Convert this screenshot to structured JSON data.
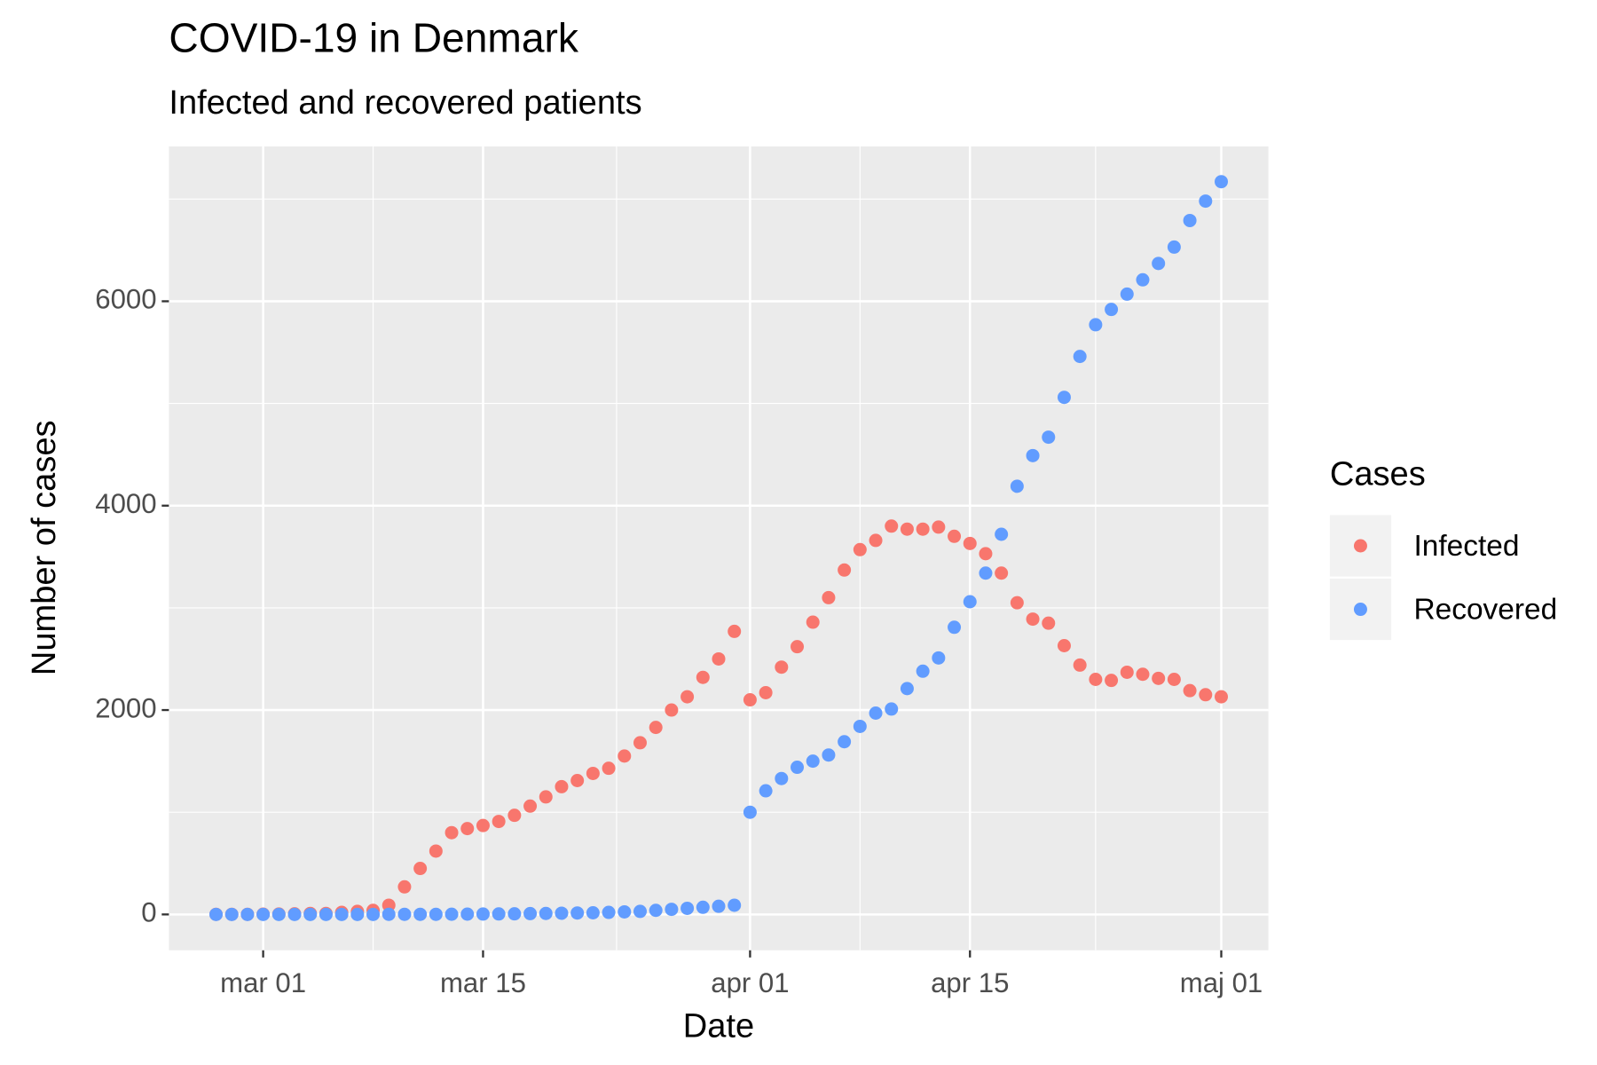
{
  "chart_data": {
    "type": "scatter",
    "title": "COVID-19 in Denmark",
    "subtitle": "Infected and recovered patients",
    "x_label": "Date",
    "y_label": "Number of cases",
    "legend_title": "Cases",
    "legend_position": "right",
    "grid": true,
    "x": [
      "02-27",
      "02-28",
      "02-29",
      "03-01",
      "03-02",
      "03-03",
      "03-04",
      "03-05",
      "03-06",
      "03-07",
      "03-08",
      "03-09",
      "03-10",
      "03-11",
      "03-12",
      "03-13",
      "03-14",
      "03-15",
      "03-16",
      "03-17",
      "03-18",
      "03-19",
      "03-20",
      "03-21",
      "03-22",
      "03-23",
      "03-24",
      "03-25",
      "03-26",
      "03-27",
      "03-28",
      "03-29",
      "03-30",
      "03-31",
      "04-01",
      "04-02",
      "04-03",
      "04-04",
      "04-05",
      "04-06",
      "04-07",
      "04-08",
      "04-09",
      "04-10",
      "04-11",
      "04-12",
      "04-13",
      "04-14",
      "04-15",
      "04-16",
      "04-17",
      "04-18",
      "04-19",
      "04-20",
      "04-21",
      "04-22",
      "04-23",
      "04-24",
      "04-25",
      "04-26",
      "04-27",
      "04-28",
      "04-29",
      "04-30",
      "05-01"
    ],
    "series": [
      {
        "name": "Infected",
        "color": "#f8766d",
        "values": [
          1,
          1,
          1,
          3,
          4,
          6,
          10,
          10,
          20,
          30,
          40,
          90,
          270,
          450,
          620,
          800,
          840,
          870,
          910,
          970,
          1060,
          1150,
          1250,
          1310,
          1380,
          1430,
          1550,
          1680,
          1830,
          2000,
          2130,
          2320,
          2500,
          2770,
          2100,
          2170,
          2420,
          2620,
          2860,
          3100,
          3370,
          3570,
          3660,
          3800,
          3770,
          3770,
          3790,
          3700,
          3630,
          3530,
          3340,
          3050,
          2890,
          2850,
          2630,
          2440,
          2300,
          2290,
          2370,
          2350,
          2310,
          2300,
          2190,
          2150,
          2130
        ]
      },
      {
        "name": "Recovered",
        "color": "#619cff",
        "values": [
          0,
          0,
          0,
          0,
          0,
          0,
          0,
          0,
          0,
          0,
          0,
          1,
          1,
          1,
          1,
          2,
          3,
          4,
          5,
          6,
          8,
          10,
          12,
          14,
          16,
          20,
          25,
          30,
          40,
          50,
          60,
          70,
          80,
          90,
          1000,
          1210,
          1330,
          1440,
          1500,
          1560,
          1690,
          1840,
          1970,
          2010,
          2210,
          2380,
          2510,
          2810,
          3060,
          3340,
          3720,
          4190,
          4490,
          4670,
          5060,
          5460,
          5770,
          5920,
          6070,
          6210,
          6370,
          6530,
          6790,
          6980,
          7170
        ]
      }
    ],
    "xlim": [
      "02-24",
      "05-04"
    ],
    "xticks": [
      {
        "value": "03-01",
        "label": "mar 01"
      },
      {
        "value": "03-15",
        "label": "mar 15"
      },
      {
        "value": "04-01",
        "label": "apr 01"
      },
      {
        "value": "04-15",
        "label": "apr 15"
      },
      {
        "value": "05-01",
        "label": "maj 01"
      }
    ],
    "ylim": [
      -351,
      7515
    ],
    "yticks": [
      0,
      2000,
      4000,
      6000
    ]
  }
}
